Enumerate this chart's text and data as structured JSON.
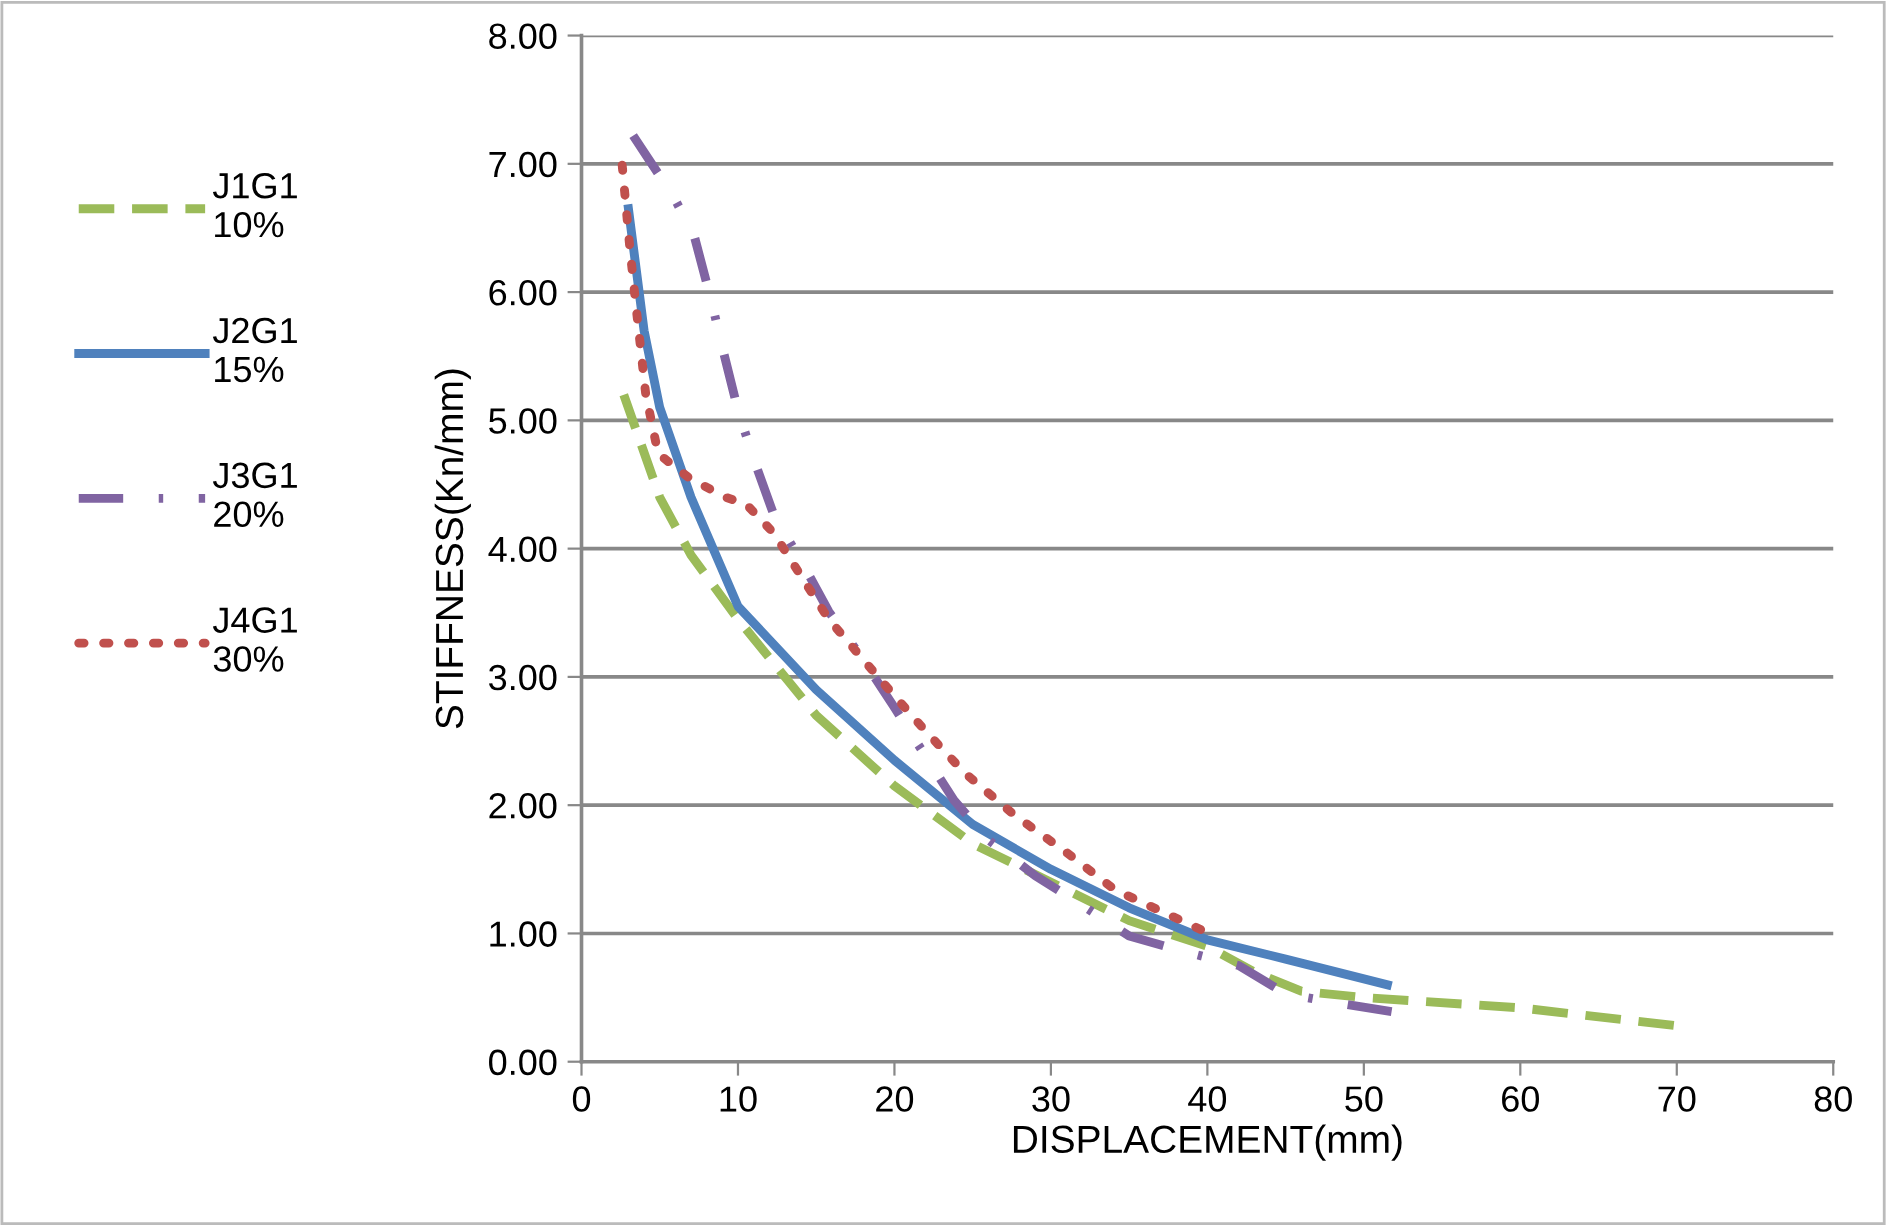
{
  "chart_data": {
    "type": "line",
    "xlabel": "DISPLACEMENT(mm)",
    "ylabel": "STIFFNESS(Kn/mm)",
    "xlim": [
      0,
      80
    ],
    "xticks": [
      0,
      10,
      20,
      30,
      40,
      50,
      60,
      70,
      80
    ],
    "ylim": [
      0,
      8
    ],
    "yticks": [
      {
        "value": 0,
        "label": "0.00"
      },
      {
        "value": 1,
        "label": "1.00"
      },
      {
        "value": 2,
        "label": "2.00"
      },
      {
        "value": 3,
        "label": "3.00"
      },
      {
        "value": 4,
        "label": "4.00"
      },
      {
        "value": 5,
        "label": "5.00"
      },
      {
        "value": 6,
        "label": "6.00"
      },
      {
        "value": 7,
        "label": "7.00"
      },
      {
        "value": 8,
        "label": "8.00"
      }
    ],
    "grid": "y",
    "legend": "left",
    "marker": "none",
    "series": [
      {
        "name": "J1G1\n10%",
        "color": "#9bbb59",
        "line_style": "dashed",
        "x": [
          2.7,
          5,
          7,
          10,
          15,
          20,
          25,
          30,
          35,
          40,
          43,
          46,
          50,
          60,
          70
        ],
        "values": [
          5.2,
          4.4,
          3.95,
          3.45,
          2.7,
          2.15,
          1.7,
          1.4,
          1.1,
          0.9,
          0.7,
          0.55,
          0.5,
          0.42,
          0.28
        ]
      },
      {
        "name": "J2G1\n15%",
        "color": "#4f81bd",
        "line_style": "solid",
        "x": [
          3,
          4,
          5,
          7,
          10,
          15,
          20,
          25,
          30,
          35,
          40,
          45,
          51.5
        ],
        "values": [
          6.65,
          5.7,
          5.1,
          4.4,
          3.55,
          2.9,
          2.35,
          1.85,
          1.5,
          1.2,
          0.95,
          0.8,
          0.6
        ]
      },
      {
        "name": "J3G1\n20%",
        "color": "#8064a2",
        "line_style": "dashdot",
        "x": [
          3.3,
          5.9,
          7.2,
          8.3,
          9.1,
          10,
          11,
          12.3,
          14.2,
          15.8,
          17.8,
          19.9,
          21.9,
          23.8,
          26,
          29,
          32,
          35,
          38.5,
          42,
          45,
          48.7,
          52.3
        ],
        "values": [
          7.22,
          6.74,
          6.44,
          5.93,
          5.52,
          5.08,
          4.7,
          4.26,
          3.87,
          3.51,
          3.17,
          2.78,
          2.4,
          2.04,
          1.73,
          1.45,
          1.22,
          0.98,
          0.86,
          0.75,
          0.53,
          0.45,
          0.38
        ]
      },
      {
        "name": "J4G1\n30%",
        "color": "#c0504d",
        "line_style": "dotted",
        "x": [
          2.6,
          3.1,
          3.5,
          4.1,
          4.9,
          6.9,
          9.2,
          10.5,
          12.3,
          13.7,
          15.8,
          19.3,
          21.9,
          24.5,
          27.7,
          30.9,
          34.1,
          40.1
        ],
        "values": [
          6.99,
          6.33,
          5.87,
          5.21,
          4.74,
          4.55,
          4.4,
          4.35,
          4.12,
          3.85,
          3.45,
          2.95,
          2.59,
          2.25,
          1.92,
          1.64,
          1.34,
          1.0
        ]
      }
    ]
  }
}
